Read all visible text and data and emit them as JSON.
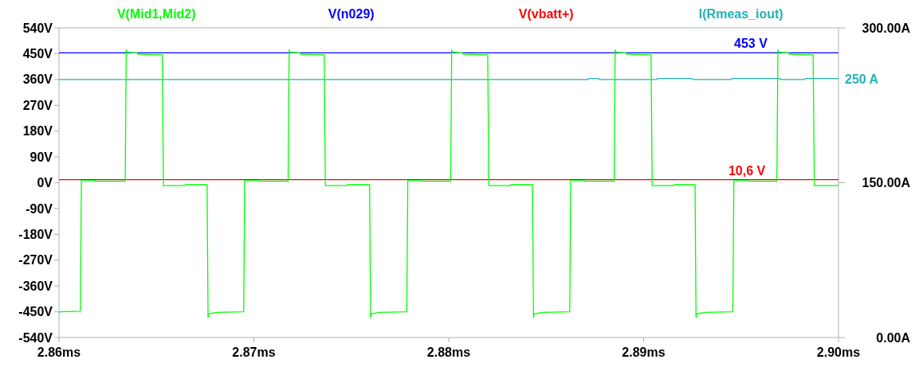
{
  "chart_data": {
    "type": "line",
    "xlim": [
      2.86,
      2.9
    ],
    "xticks": [
      {
        "value": 2.86,
        "label": "2.86ms"
      },
      {
        "value": 2.87,
        "label": "2.87ms"
      },
      {
        "value": 2.88,
        "label": "2.88ms"
      },
      {
        "value": 2.89,
        "label": "2.89ms"
      },
      {
        "value": 2.9,
        "label": "2.90ms"
      }
    ],
    "ylim": [
      -540,
      540
    ],
    "yticks": [
      {
        "value": 540,
        "label": "540V"
      },
      {
        "value": 450,
        "label": "450V"
      },
      {
        "value": 360,
        "label": "360V"
      },
      {
        "value": 270,
        "label": "270V"
      },
      {
        "value": 180,
        "label": "180V"
      },
      {
        "value": 90,
        "label": "90V"
      },
      {
        "value": 0,
        "label": "0V"
      },
      {
        "value": -90,
        "label": "-90V"
      },
      {
        "value": -180,
        "label": "-180V"
      },
      {
        "value": -270,
        "label": "-270V"
      },
      {
        "value": -360,
        "label": "-360V"
      },
      {
        "value": -450,
        "label": "-450V"
      },
      {
        "value": -540,
        "label": "-540V"
      }
    ],
    "y2lim": [
      0,
      300
    ],
    "y2ticks": [
      {
        "value": 0,
        "label": "0.00A"
      },
      {
        "value": 150,
        "label": "150.00A"
      },
      {
        "value": 300,
        "label": "300.00A"
      }
    ],
    "legend": "top",
    "grid": false,
    "series": [
      {
        "name": "V(Mid1,Mid2)",
        "color": "#00ff00",
        "x": [
          2.86,
          2.86005,
          2.8611,
          2.86115,
          2.86185,
          2.86187,
          2.8634,
          2.86345,
          2.86349,
          2.86402,
          2.86404,
          2.8653,
          2.86536,
          2.86646,
          2.86648,
          2.8676,
          2.86765,
          2.86768,
          2.8681,
          2.86948,
          2.86953,
          2.87023,
          2.87025,
          2.87176,
          2.87181,
          2.87185,
          2.87238,
          2.8724,
          2.87361,
          2.87367,
          2.87477,
          2.87479,
          2.87594,
          2.87599,
          2.87602,
          2.87644,
          2.87785,
          2.8779,
          2.8786,
          2.87862,
          2.8801,
          2.88015,
          2.88019,
          2.88072,
          2.88074,
          2.882,
          2.88206,
          2.88316,
          2.88318,
          2.8843,
          2.88435,
          2.88438,
          2.8848,
          2.88621,
          2.88626,
          2.88696,
          2.88698,
          2.88849,
          2.88854,
          2.88858,
          2.88911,
          2.88913,
          2.89038,
          2.89044,
          2.89154,
          2.89156,
          2.89264,
          2.89269,
          2.89272,
          2.89314,
          2.89458,
          2.89463,
          2.89533,
          2.89535,
          2.89684,
          2.89689,
          2.89693,
          2.89746,
          2.89748,
          2.8987,
          2.89876,
          2.8999,
          2.9
        ],
        "values": [
          -455,
          -450,
          -448,
          8,
          8,
          5,
          5,
          463,
          455,
          452,
          448,
          446,
          -10,
          -10,
          -7,
          -7,
          -470,
          -458,
          -452,
          -450,
          8,
          8,
          5,
          5,
          463,
          455,
          452,
          448,
          446,
          -10,
          -10,
          -7,
          -7,
          -470,
          -458,
          -452,
          -450,
          8,
          8,
          5,
          5,
          463,
          455,
          452,
          448,
          446,
          -10,
          -10,
          -7,
          -7,
          -470,
          -458,
          -452,
          -450,
          8,
          8,
          5,
          5,
          463,
          455,
          452,
          448,
          446,
          -10,
          -10,
          -7,
          -7,
          -470,
          -458,
          -452,
          -450,
          8,
          8,
          5,
          5,
          463,
          455,
          452,
          448,
          446,
          -10,
          -10,
          -7
        ]
      },
      {
        "name": "V(n029)",
        "color": "#0000ff",
        "x": [
          2.86,
          2.9
        ],
        "values": [
          453,
          453
        ]
      },
      {
        "name": "V(vbatt+)",
        "color": "#ff0000",
        "x": [
          2.86,
          2.9
        ],
        "values": [
          10.6,
          10.6
        ]
      },
      {
        "name": "I(Rmeas_iout)",
        "color": "#20b2b2",
        "axis": "y2",
        "x": [
          2.86,
          2.88716,
          2.8872,
          2.88768,
          2.88772,
          2.89068,
          2.89072,
          2.89251,
          2.89255,
          2.89449,
          2.89453,
          2.89701,
          2.89705,
          2.89826,
          2.8983,
          2.9
        ],
        "values": [
          250,
          250,
          251,
          251,
          250,
          250,
          251,
          251,
          250,
          250,
          251,
          251,
          250,
          250,
          251,
          251
        ]
      }
    ],
    "annotations": [
      {
        "text": "453 V",
        "x": 2.8955,
        "y": 453
      },
      {
        "text": "10,6 V",
        "x": 2.8953,
        "y": 10.6
      },
      {
        "text": "250 A",
        "x": 2.9,
        "y": 360
      }
    ]
  }
}
